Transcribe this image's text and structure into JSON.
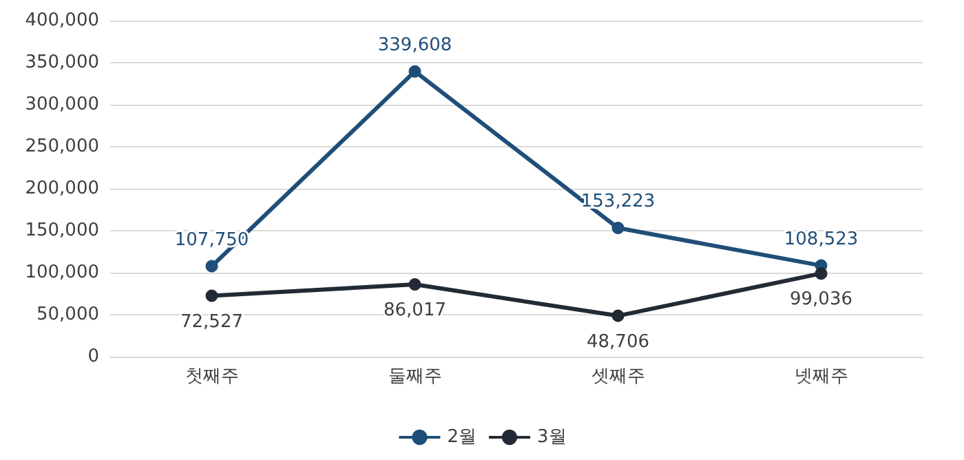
{
  "chart_data": {
    "type": "line",
    "categories": [
      "첫째주",
      "둘째주",
      "셋째주",
      "넷째주"
    ],
    "series": [
      {
        "name": "2월",
        "color": "#1f4e79",
        "values": [
          107750,
          339608,
          153223,
          108523
        ],
        "value_labels": [
          "107,750",
          "339,608",
          "153,223",
          "108,523"
        ]
      },
      {
        "name": "3월",
        "color": "#222a35",
        "values": [
          72527,
          86017,
          48706,
          99036
        ],
        "value_labels": [
          "72,527",
          "86,017",
          "48,706",
          "99,036"
        ]
      }
    ],
    "ylim": [
      0,
      400000
    ],
    "yticks": [
      0,
      {
        "value": 50000,
        "label": "50,000"
      },
      {
        "value": 100000,
        "label": "100,000"
      },
      {
        "value": 150000,
        "label": "150,000"
      },
      {
        "value": 200000,
        "label": "200,000"
      },
      {
        "value": 250000,
        "label": "250,000"
      },
      {
        "value": 300000,
        "label": "300,000"
      },
      {
        "value": 350000,
        "label": "350,000"
      },
      {
        "value": 400000,
        "label": "400,000"
      }
    ],
    "grid": "y",
    "legend": "bottom",
    "marker": "circle",
    "line_style": "solid"
  }
}
